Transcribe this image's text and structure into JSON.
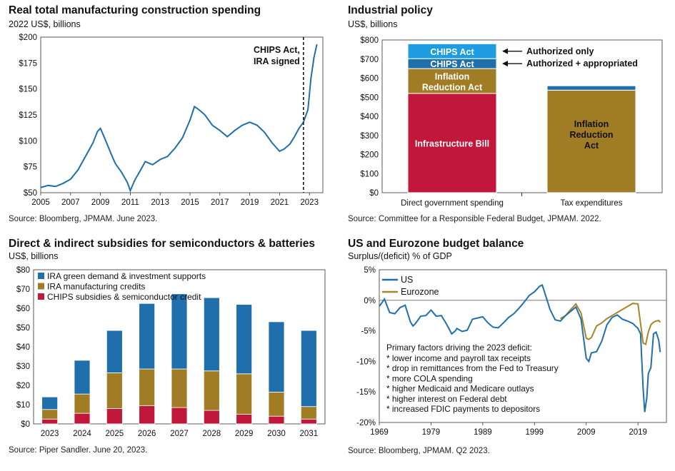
{
  "colors": {
    "us_blue": "#1f6fad",
    "eurozone_gold": "#a8852a",
    "cyan_bar": "#1e9ee0",
    "dark_blue": "#1f6fad",
    "gold": "#a07c25",
    "red": "#c0173a"
  },
  "chart_data": [
    {
      "type": "line",
      "title": "Real total manufacturing construction spending",
      "subtitle": "2022 US$, billions",
      "source": "Source: Bloomberg, JPMAM. June 2023.",
      "ylim": [
        50,
        200
      ],
      "xlim": [
        2005,
        2023.9
      ],
      "yticks": [
        "$50",
        "$75",
        "$100",
        "$125",
        "$150",
        "$175",
        "$200"
      ],
      "ytick_values": [
        50,
        75,
        100,
        125,
        150,
        175,
        200
      ],
      "xticks": [
        "2005",
        "2007",
        "2009",
        "2011",
        "2013",
        "2015",
        "2017",
        "2019",
        "2021",
        "2023"
      ],
      "xtick_values": [
        2005,
        2007,
        2009,
        2011,
        2013,
        2015,
        2017,
        2019,
        2021,
        2023
      ],
      "annotation": {
        "lines": [
          "CHIPS Act,",
          "IRA signed"
        ],
        "x": 2022.6
      },
      "series": [
        {
          "x": [
            2005,
            2005.5,
            2006,
            2006.5,
            2007,
            2007.5,
            2008,
            2008.5,
            2008.8,
            2009,
            2009.3,
            2009.7,
            2010,
            2010.4,
            2010.8,
            2011,
            2011.3,
            2011.7,
            2012,
            2012.5,
            2013,
            2013.5,
            2014,
            2014.5,
            2015,
            2015.3,
            2015.6,
            2016,
            2016.5,
            2017,
            2017.5,
            2018,
            2018.5,
            2019,
            2019.5,
            2020,
            2020.5,
            2021,
            2021.3,
            2021.7,
            2022,
            2022.3,
            2022.6,
            2022.9,
            2023.1,
            2023.3,
            2023.5
          ],
          "y": [
            55,
            57,
            56,
            59,
            63,
            72,
            85,
            98,
            109,
            112,
            102,
            88,
            78,
            70,
            60,
            52,
            62,
            72,
            80,
            77,
            82,
            85,
            93,
            103,
            120,
            133,
            130,
            125,
            115,
            110,
            104,
            110,
            115,
            118,
            115,
            108,
            98,
            90,
            92,
            97,
            104,
            112,
            118,
            130,
            160,
            180,
            193
          ]
        }
      ]
    },
    {
      "type": "bar",
      "stacked": true,
      "title": "Industrial policy",
      "subtitle": "US$, billions",
      "source": "Source: Committee for a Responsible Federal Budget, JPMAM. 2022.",
      "ylim": [
        0,
        800
      ],
      "yticks": [
        "$0",
        "$100",
        "$200",
        "$300",
        "$400",
        "$500",
        "$600",
        "$700",
        "$800"
      ],
      "ytick_values": [
        0,
        100,
        200,
        300,
        400,
        500,
        600,
        700,
        800
      ],
      "categories": [
        "Direct government spending",
        "Tax expenditures"
      ],
      "series": [
        {
          "name": "Infrastructure Bill",
          "label": "Infrastructure Bill",
          "values": [
            520,
            0
          ]
        },
        {
          "name": "Inflation Reduction Act",
          "label": "Inflation\nReduction Act",
          "values": [
            130,
            537
          ]
        },
        {
          "name": "CHIPS Act",
          "label": "CHIPS Act",
          "values": [
            52,
            23
          ]
        },
        {
          "name": "CHIPS Act",
          "label": "CHIPS Act",
          "values": [
            78,
            0
          ]
        }
      ],
      "bar2_label": "Inflation\nReduction\nAct",
      "arrows": [
        "Authorized only",
        "Authorized + appropriated"
      ]
    },
    {
      "type": "bar",
      "stacked": true,
      "title": "Direct & indirect subsidies for semiconductors & batteries",
      "subtitle": "US$, billions",
      "source": "Source: Piper Sandler. June 20, 2023.",
      "ylim": [
        0,
        80
      ],
      "yticks": [
        "$0",
        "$10",
        "$20",
        "$30",
        "$40",
        "$50",
        "$60",
        "$70",
        "$80"
      ],
      "ytick_values": [
        0,
        10,
        20,
        30,
        40,
        50,
        60,
        70,
        80
      ],
      "categories": [
        "2023",
        "2024",
        "2025",
        "2026",
        "2027",
        "2028",
        "2029",
        "2030",
        "2031"
      ],
      "series": [
        {
          "name": "CHIPS subsidies & semiconductor credit",
          "values": [
            2.5,
            5.5,
            8,
            9.5,
            8.5,
            7,
            5,
            4,
            2.5
          ]
        },
        {
          "name": "IRA manufacturing credits",
          "values": [
            5,
            10,
            18.5,
            19,
            20,
            20.5,
            21,
            12.5,
            6.5
          ]
        },
        {
          "name": "IRA green demand & investment supports",
          "values": [
            6.5,
            17.5,
            22,
            34,
            39,
            38,
            36,
            36.5,
            39.5
          ]
        }
      ],
      "legend": [
        "IRA green demand & investment supports",
        "IRA manufacturing credits",
        "CHIPS subsidies & semiconductor credit"
      ]
    },
    {
      "type": "line",
      "title": "US and Eurozone budget balance",
      "subtitle": "Surplus/(deficit) % of GDP",
      "source": "Source: Bloomberg, JPMAM. Q2 2023.",
      "ylim": [
        -20,
        5
      ],
      "xlim": [
        1969,
        2024.5
      ],
      "yticks": [
        "5%",
        "0%",
        "-5%",
        "-10%",
        "-15%",
        "-20%"
      ],
      "ytick_values": [
        5,
        0,
        -5,
        -10,
        -15,
        -20
      ],
      "xticks": [
        "1969",
        "1979",
        "1989",
        "1999",
        "2009",
        "2019"
      ],
      "xtick_values": [
        1969,
        1979,
        1989,
        1999,
        2009,
        2019
      ],
      "legend": [
        "US",
        "Eurozone"
      ],
      "note_title": "Primary factors driving the 2023 deficit:",
      "notes": [
        "* lower income and payroll tax receipts",
        "* drop in remittances from the Fed to Treasury",
        "* more COLA spending",
        "* higher Medicaid and Medicare outlays",
        "* higher interest on Federal debt",
        "* increased FDIC payments to depositors"
      ],
      "series": [
        {
          "name": "US",
          "x": [
            1969,
            1970,
            1971,
            1972,
            1973,
            1974,
            1975,
            1975.5,
            1976,
            1977,
            1978,
            1979,
            1980,
            1981,
            1982,
            1983,
            1983.7,
            1984,
            1985,
            1986,
            1987,
            1988,
            1989,
            1990,
            1991,
            1992,
            1993,
            1994,
            1995,
            1996,
            1997,
            1998,
            1999,
            2000,
            2000.5,
            2001,
            2002,
            2003,
            2004,
            2005,
            2006,
            2007,
            2008,
            2009,
            2009.5,
            2010,
            2011,
            2012,
            2013,
            2014,
            2015,
            2016,
            2017,
            2018,
            2019,
            2019.5,
            2020,
            2020.3,
            2020.7,
            2021,
            2021.5,
            2022,
            2022.5,
            2023,
            2023.3
          ],
          "y": [
            -1,
            0.2,
            -2,
            -2.2,
            -1.2,
            -0.8,
            -3.5,
            -4.2,
            -3.8,
            -2.6,
            -2.5,
            -1.6,
            -2.6,
            -2.5,
            -3.9,
            -5.5,
            -5,
            -4.6,
            -5.1,
            -4.9,
            -3.1,
            -2.9,
            -2.7,
            -3.7,
            -4.4,
            -4.5,
            -3.7,
            -2.8,
            -2.2,
            -1.3,
            -0.3,
            0.8,
            1.4,
            2.3,
            2.5,
            1.2,
            -1.5,
            -3.2,
            -3.4,
            -2.5,
            -1.8,
            -1.1,
            -3.1,
            -9.5,
            -10,
            -8.6,
            -8.4,
            -6.7,
            -4,
            -2.8,
            -2.4,
            -3.1,
            -3.4,
            -3.8,
            -4.6,
            -5.5,
            -14.5,
            -18.3,
            -16,
            -12,
            -11,
            -5.5,
            -5.2,
            -6.5,
            -8.5
          ]
        },
        {
          "name": "Eurozone",
          "x": [
            2004,
            2005,
            2006,
            2007,
            2008,
            2009,
            2009.5,
            2010,
            2011,
            2012,
            2013,
            2014,
            2015,
            2016,
            2017,
            2018,
            2019,
            2020,
            2020.5,
            2021,
            2021.5,
            2022,
            2022.5,
            2023,
            2023.3
          ],
          "y": [
            -3,
            -2.5,
            -1.5,
            -0.6,
            -2.1,
            -6.2,
            -6.4,
            -6.1,
            -4.2,
            -3.7,
            -3,
            -2.5,
            -2,
            -1.5,
            -1,
            -0.5,
            -0.6,
            -7,
            -7.2,
            -5.2,
            -4,
            -3.6,
            -3.4,
            -3.3,
            -3.6
          ]
        }
      ]
    }
  ]
}
